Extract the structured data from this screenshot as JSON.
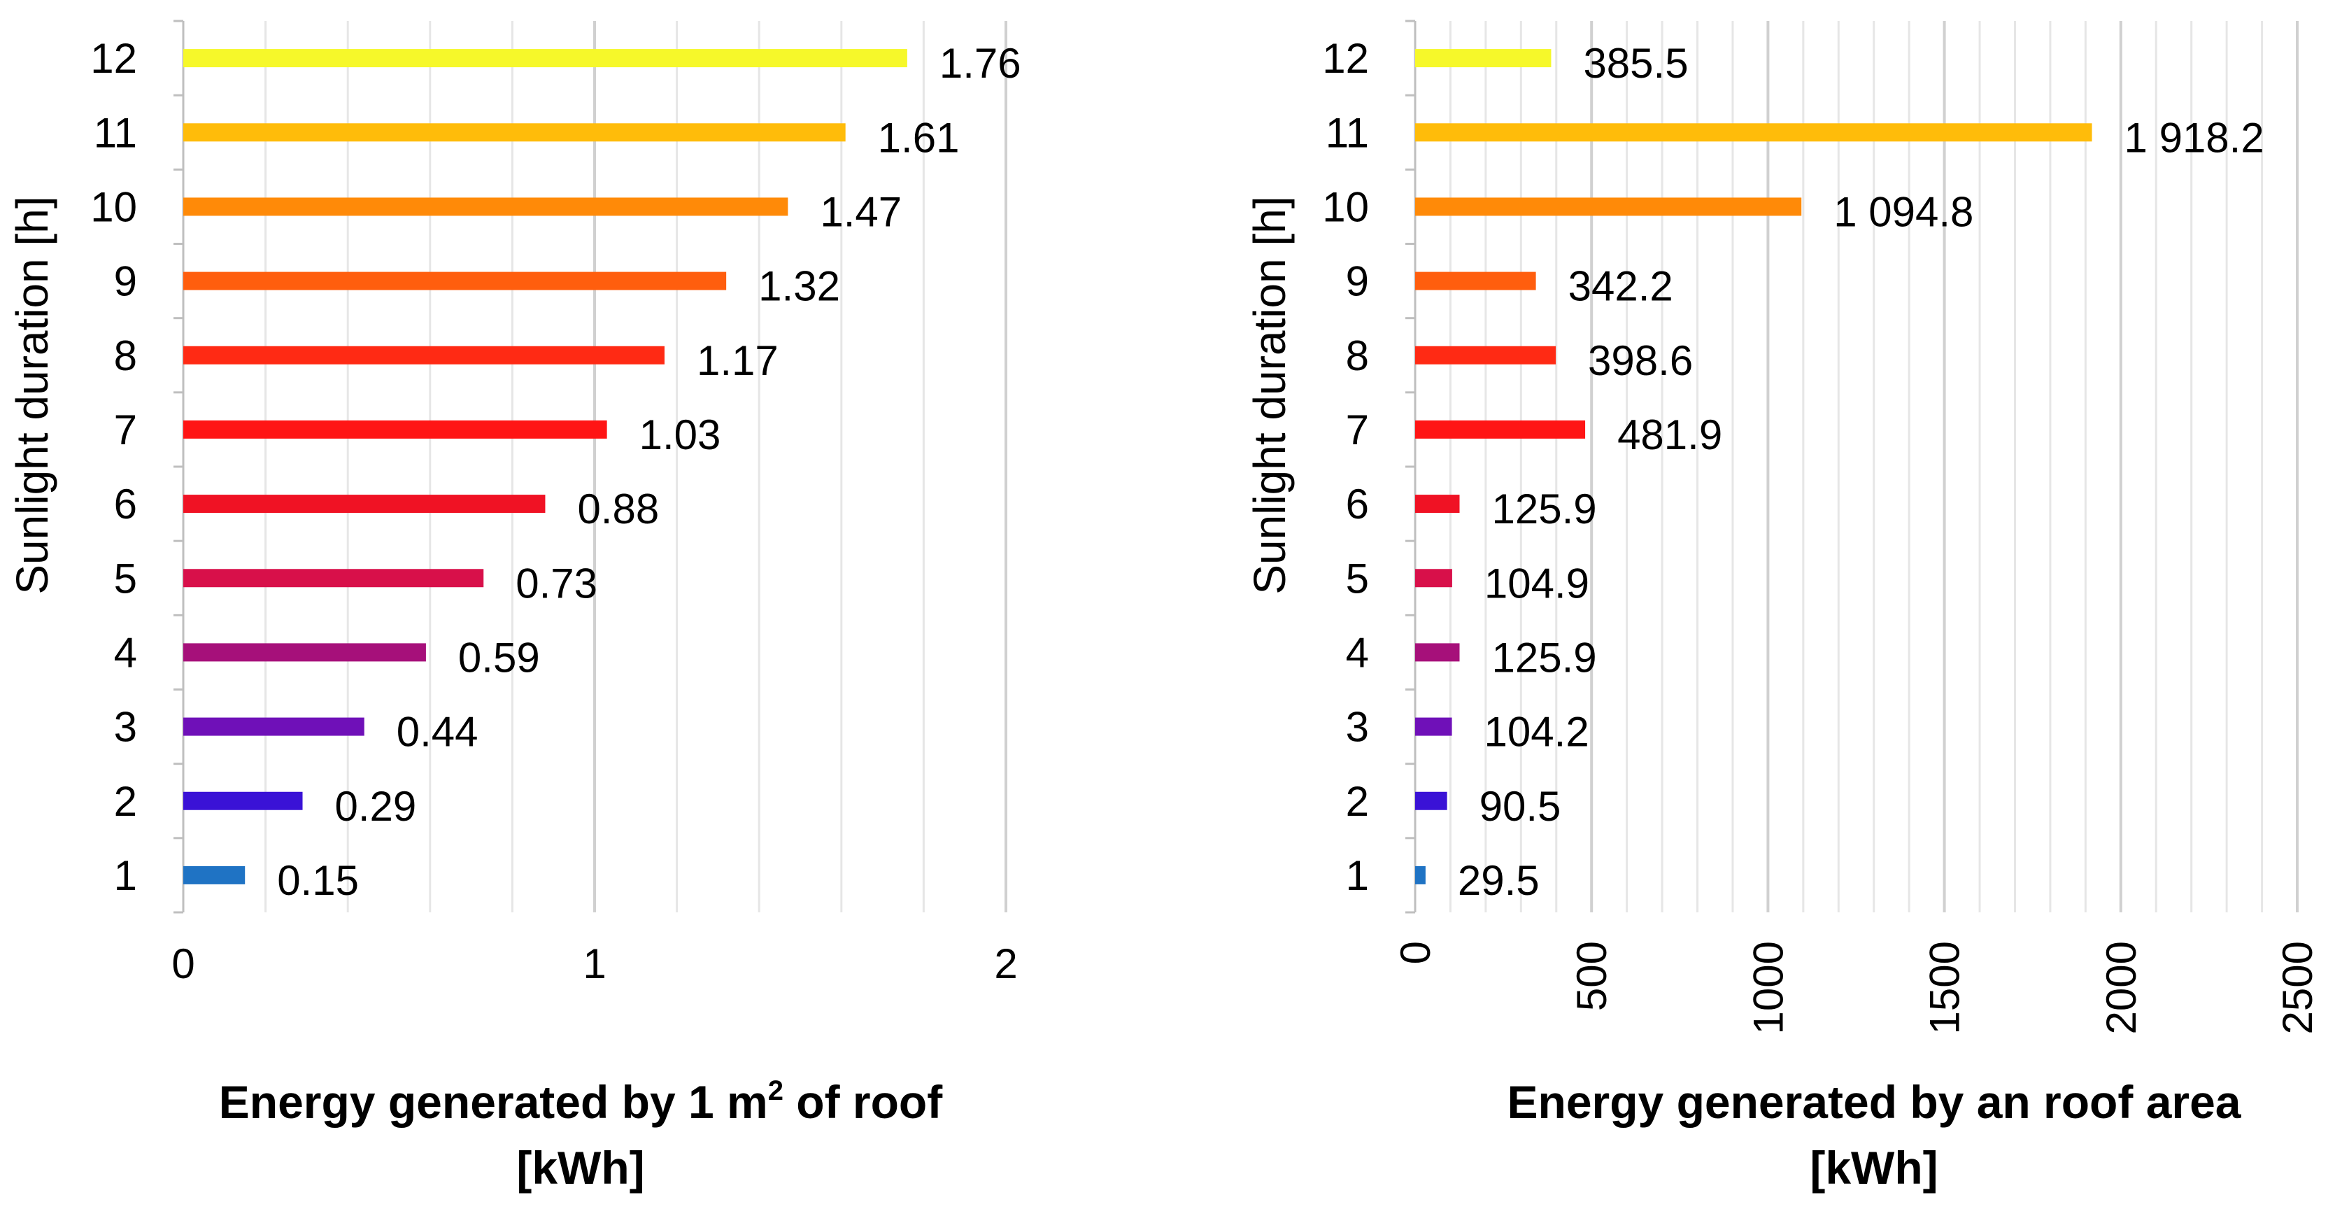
{
  "chart_data": [
    {
      "type": "bar",
      "orientation": "horizontal",
      "categories": [
        "1",
        "2",
        "3",
        "4",
        "5",
        "6",
        "7",
        "8",
        "9",
        "10",
        "11",
        "12"
      ],
      "values": [
        0.15,
        0.29,
        0.44,
        0.59,
        0.73,
        0.88,
        1.03,
        1.17,
        1.32,
        1.47,
        1.61,
        1.76
      ],
      "value_labels": [
        "0.15",
        "0.29",
        "0.44",
        "0.59",
        "0.73",
        "0.88",
        "1.03",
        "1.17",
        "1.32",
        "1.47",
        "1.61",
        "1.76"
      ],
      "colors": [
        "#1F73C4",
        "#3A12D6",
        "#6F10B8",
        "#A6107A",
        "#D8104A",
        "#F01224",
        "#FF1515",
        "#FF2A14",
        "#FF5E0E",
        "#FF8A08",
        "#FFBC0A",
        "#F6F82A"
      ],
      "ylabel": "Sunlight duration [h]",
      "xlabel_line1_pre": "Energy generated by 1 m",
      "xlabel_line1_sup": "2",
      "xlabel_line1_post": " of roof",
      "xlabel_line2": "[kWh]",
      "xlim": [
        0,
        2
      ],
      "xticks": [
        0,
        1,
        2
      ],
      "minor_step": 0.2,
      "grid": true
    },
    {
      "type": "bar",
      "orientation": "horizontal",
      "categories": [
        "1",
        "2",
        "3",
        "4",
        "5",
        "6",
        "7",
        "8",
        "9",
        "10",
        "11",
        "12"
      ],
      "values": [
        29.5,
        90.5,
        104.2,
        125.9,
        104.9,
        125.9,
        481.9,
        398.6,
        342.2,
        1094.8,
        1918.2,
        385.5
      ],
      "value_labels": [
        "29.5",
        "90.5",
        "104.2",
        "125.9",
        "104.9",
        "125.9",
        "481.9",
        "398.6",
        "342.2",
        "1 094.8",
        "1 918.2",
        "385.5"
      ],
      "colors": [
        "#1F73C4",
        "#3A12D6",
        "#6F10B8",
        "#A6107A",
        "#D8104A",
        "#F01224",
        "#FF1515",
        "#FF2A14",
        "#FF5E0E",
        "#FF8A08",
        "#FFBC0A",
        "#F6F82A"
      ],
      "ylabel": "Sunlight duration [h]",
      "xlabel_line1": "Energy generated by an roof area",
      "xlabel_line2": "[kWh]",
      "xlim": [
        0,
        2500
      ],
      "xticks": [
        0,
        500,
        1000,
        1500,
        2000,
        2500
      ],
      "minor_step": 100,
      "grid": true
    }
  ]
}
